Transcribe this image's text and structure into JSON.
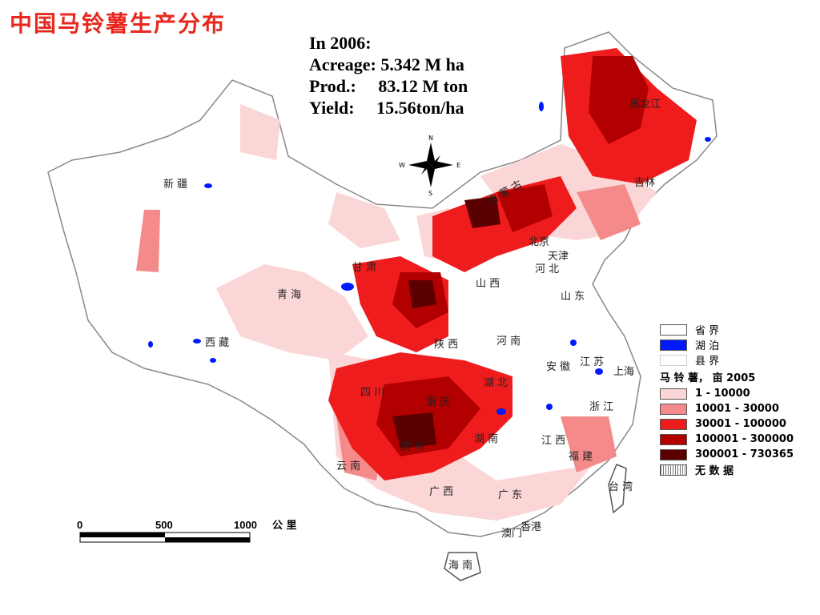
{
  "title": "中国马铃薯生产分布",
  "stats": {
    "year_line": "In 2006:",
    "acreage_line": "Acreage: 5.342 M ha",
    "prod_line": "Prod.:     83.12 M ton",
    "yield_line": "Yield:     15.56ton/ha"
  },
  "compass": {
    "n": "N",
    "s": "S",
    "e": "E",
    "w": "W"
  },
  "province_labels": {
    "xinjiang": "新 疆",
    "qinghai": "青 海",
    "xizang": "西 藏",
    "neimenggu": "内 蒙 古",
    "heilongjiang": "黑龙江",
    "jilin": "吉林",
    "beijing": "北京",
    "tianjin": "天津",
    "hebei": "河 北",
    "shanxi": "山 西",
    "gansu": "甘 肃",
    "shaanxi": "陕 西",
    "henan": "河 南",
    "shandong": "山 东",
    "jiangsu": "江 苏",
    "shanghai": "上海",
    "anhui": "安 徽",
    "hubei": "湖 北",
    "sichuan": "四 川",
    "zhejiang": "浙 江",
    "hunan": "湖 南",
    "jiangxi": "江 西",
    "fujian": "福 建",
    "yunnan": "云 南",
    "guangxi": "广 西",
    "guangdong": "广 东",
    "hongkong": "香港",
    "macau": "澳门",
    "hainan": "海 南",
    "taiwan": "台 湾",
    "guizhou": "贵 州",
    "chongqing": "重 庆"
  },
  "legend": {
    "items": [
      {
        "label": "省 界",
        "color": "#ffffff"
      },
      {
        "label": "湖 泊",
        "color": "#0019ff"
      },
      {
        "label": "县 界",
        "color": "#ffffff"
      }
    ],
    "class_title": "马 铃 薯， 亩 2005",
    "classes": [
      {
        "label": "1 - 10000",
        "color": "#fbd6d6"
      },
      {
        "label": "10001 - 30000",
        "color": "#f48a8a"
      },
      {
        "label": "30001 - 100000",
        "color": "#ee1c1c"
      },
      {
        "label": "100001 - 300000",
        "color": "#b20000"
      },
      {
        "label": "300001 - 730365",
        "color": "#5a0000"
      },
      {
        "label": "无 数 据",
        "color": "#dddddd"
      }
    ]
  },
  "scale": {
    "t0": "0",
    "t1": "500",
    "t2": "1000",
    "unit": "公 里"
  }
}
